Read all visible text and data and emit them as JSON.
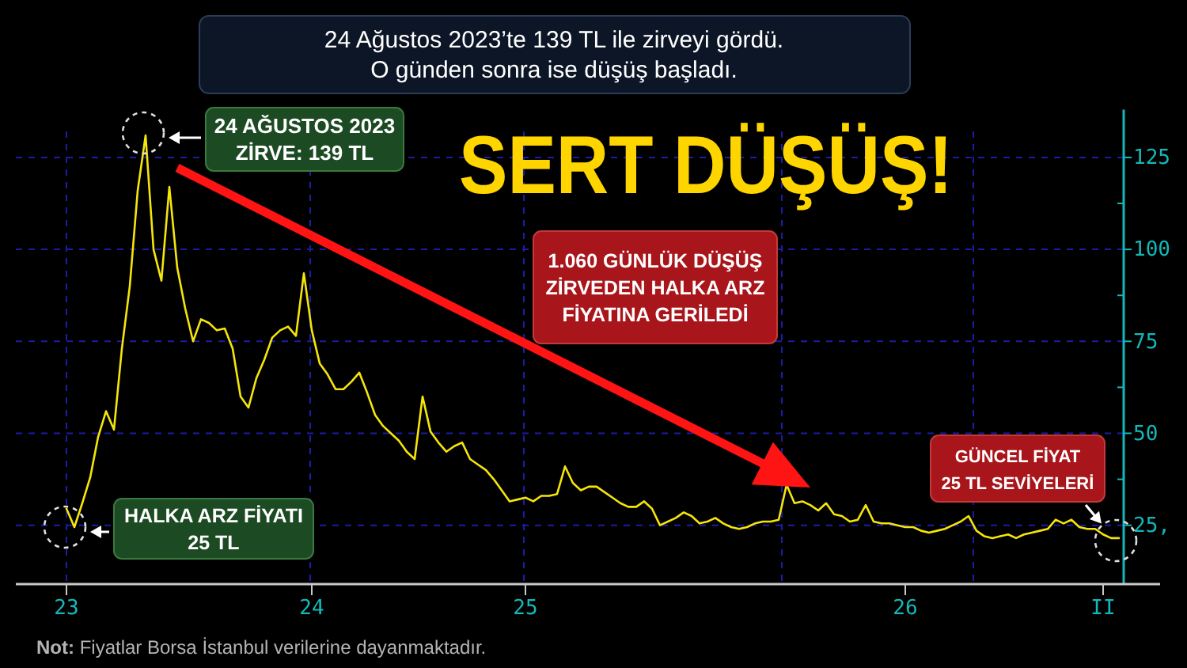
{
  "chart_data": {
    "type": "line",
    "title": "SERT DÜŞÜŞ!",
    "subtitle": "24 Ağustos 2023’te 139 TL ile zirveyi gördü.\nO günden sonra ise düşüş başladı.",
    "categories": [
      "23",
      null,
      null,
      null,
      null,
      null,
      null,
      null,
      null,
      null,
      null,
      null,
      null,
      null,
      null,
      null,
      null,
      null,
      null,
      null,
      null,
      null,
      null,
      null,
      null,
      null,
      null,
      null,
      null,
      null,
      null,
      "24",
      null,
      null,
      null,
      null,
      null,
      null,
      null,
      null,
      null,
      null,
      null,
      null,
      null,
      null,
      null,
      null,
      null,
      null,
      null,
      null,
      null,
      null,
      null,
      null,
      null,
      null,
      "25",
      null,
      null,
      null,
      null,
      null,
      null,
      null,
      null,
      null,
      null,
      null,
      null,
      null,
      null,
      null,
      null,
      null,
      null,
      null,
      null,
      null,
      null,
      null,
      null,
      null,
      null,
      null,
      null,
      null,
      null,
      null,
      null,
      null,
      null,
      null,
      null,
      null,
      null,
      null,
      null,
      null,
      null,
      null,
      null,
      null,
      null,
      null,
      "26",
      null,
      null,
      null,
      null,
      null,
      null,
      null,
      null,
      null,
      null,
      null,
      null,
      null,
      null,
      null,
      null,
      null,
      null,
      null,
      null,
      null,
      null,
      null,
      null,
      "II",
      null,
      null
    ],
    "values": [
      29.5,
      24.5,
      31,
      38,
      49,
      56,
      51,
      73,
      90,
      116,
      131,
      100,
      91.5,
      117,
      95,
      84,
      75,
      81,
      80,
      78,
      78.5,
      73,
      60,
      57,
      65,
      70,
      76,
      78,
      79,
      76.5,
      93.5,
      78,
      69,
      66,
      62,
      62,
      64,
      66.5,
      61,
      55,
      52,
      50,
      48,
      45,
      43,
      60,
      50.5,
      47.5,
      45,
      46.5,
      47.5,
      43,
      41.5,
      40,
      37.5,
      34.5,
      31.5,
      32,
      32.5,
      31.5,
      33,
      33,
      33.5,
      41,
      36.5,
      34.5,
      35.5,
      35.5,
      34,
      32.5,
      31,
      30,
      30,
      31.5,
      29.5,
      25,
      26,
      27,
      28.5,
      27.5,
      25.5,
      26,
      27,
      25.5,
      24.5,
      24,
      24.5,
      25.5,
      26,
      26,
      26.5,
      36,
      31,
      31.5,
      30.5,
      29,
      31,
      28,
      27.5,
      26,
      26.5,
      30.5,
      26,
      25.5,
      25.5,
      25,
      24.5,
      24.5,
      23.5,
      23,
      23.5,
      24,
      25,
      26,
      27.5,
      23.5,
      22,
      21.5,
      22,
      22.5,
      21.5,
      22.5,
      23,
      23.5,
      24,
      26.5,
      25.5,
      26.5,
      24.5,
      24,
      24,
      22.5,
      21.5,
      21.5
    ],
    "color": "#f5e50a",
    "ylim": [
      9,
      138
    ],
    "yticks": [
      {
        "value": 25,
        "label": "25,"
      },
      {
        "value": 37.5,
        "label": null
      },
      50,
      {
        "value": 62.5,
        "label": null
      },
      75,
      {
        "value": 87.5,
        "label": null
      },
      100,
      {
        "value": 112.5,
        "label": null
      },
      125
    ],
    "grid": "y",
    "annotations": [
      "24 AĞUSTOS 2023\nZİRVE: 139 TL",
      "HALKA ARZ FİYATI\n25 TL",
      "1.060 GÜNLÜK DÜŞÜŞ\nZİRVEDEN HALKA ARZ\nFİYATINA GERİLEDİ",
      "GÜNCEL FİYAT\n25 TL SEVİYELERİ",
      "Not: Fiyatlar Borsa İstanbul verilerine dayanmaktadır."
    ]
  }
}
